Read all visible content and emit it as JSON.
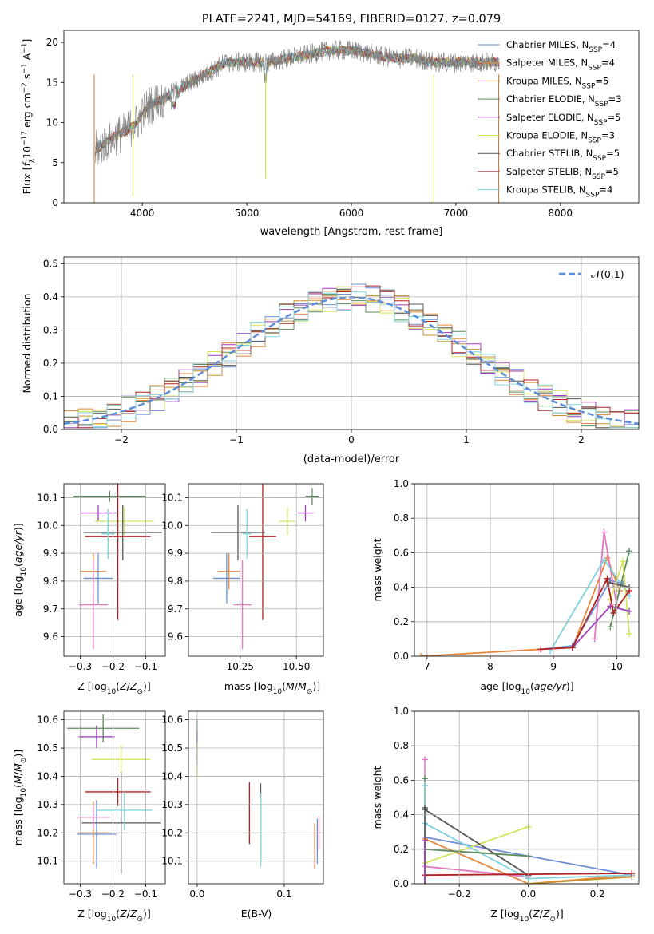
{
  "figure": {
    "title": "PLATE=2241, MJD=54169, FIBERID=0127, z=0.079"
  },
  "chart_data": [
    {
      "id": "spectrum",
      "type": "line",
      "title": "PLATE=2241, MJD=54169, FIBERID=0127, z=0.079",
      "xlabel": "wavelength [Angstrom, rest frame]",
      "ylabel": "Flux [f_λ 10^-17 erg cm^-2 s^-1 A^-1]",
      "xlim": [
        3250,
        8750
      ],
      "ylim": [
        0,
        21.5
      ],
      "xticks": [
        4000,
        5000,
        6000,
        7000,
        8000
      ],
      "yticks": [
        0,
        5,
        10,
        15,
        20
      ],
      "grid": false,
      "legend_placement": "right",
      "legend": [
        {
          "base": "Chabrier MILES, N",
          "sub": "SSP",
          "tail": "=4",
          "color": "#6c8ed6"
        },
        {
          "base": "Salpeter MILES, N",
          "sub": "SSP",
          "tail": "=4",
          "color": "#e9853a"
        },
        {
          "base": "Kroupa MILES, N",
          "sub": "SSP",
          "tail": "=5",
          "color": "#c8902c"
        },
        {
          "base": "Chabrier ELODIE, N",
          "sub": "SSP",
          "tail": "=3",
          "color": "#5b8a5b"
        },
        {
          "base": "Salpeter ELODIE, N",
          "sub": "SSP",
          "tail": "=5",
          "color": "#9b3cb8"
        },
        {
          "base": "Kroupa ELODIE, N",
          "sub": "SSP",
          "tail": "=3",
          "color": "#d4e45a"
        },
        {
          "base": "Chabrier STELIB, N",
          "sub": "SSP",
          "tail": "=5",
          "color": "#555555"
        },
        {
          "base": "Salpeter STELIB, N",
          "sub": "SSP",
          "tail": "=5",
          "color": "#b22222"
        },
        {
          "base": "Kroupa STELIB, N",
          "sub": "SSP",
          "tail": "=4",
          "color": "#7fd3dc"
        }
      ],
      "data_curve": {
        "color": "#808080",
        "x": [
          3550,
          3700,
          3850,
          3950,
          4050,
          4200,
          4400,
          4600,
          4800,
          5000,
          5200,
          5400,
          5600,
          5800,
          6000,
          6200,
          6400,
          6600,
          6800,
          7000,
          7200,
          7400
        ],
        "y": [
          6.5,
          8,
          9,
          10,
          12,
          13,
          14.5,
          16,
          17.5,
          17.5,
          17.5,
          18,
          18.5,
          19,
          19,
          18.5,
          18,
          18,
          17.5,
          17.5,
          17.5,
          17.5
        ]
      }
    },
    {
      "id": "residuals",
      "type": "line",
      "xlabel": "(data-model)/error",
      "ylabel": "Normed distribution",
      "xlim": [
        -2.5,
        2.5
      ],
      "ylim": [
        0,
        0.52
      ],
      "xticks": [
        -2,
        -1,
        0,
        1,
        2
      ],
      "yticks": [
        0.0,
        0.1,
        0.2,
        0.3,
        0.4,
        0.5
      ],
      "grid": true,
      "legend": "𝒩(0,1)",
      "normal_color": "#5b8dd9"
    },
    {
      "id": "age_vs_Z",
      "type": "scatter",
      "xlabel": "Z [log10(Z/Z⊙)]",
      "ylabel": "age [log10(age/yr)]",
      "xlim": [
        -0.35,
        -0.04
      ],
      "ylim": [
        9.53,
        10.15
      ],
      "xticks": [
        -0.3,
        -0.2,
        -0.1
      ],
      "yticks": [
        9.6,
        9.7,
        9.8,
        9.9,
        10.0,
        10.1
      ],
      "points": [
        {
          "color": "#6c8ed6",
          "x": -0.245,
          "xerr": 0.045,
          "y": 9.81,
          "yerr": 0.09
        },
        {
          "color": "#e9853a",
          "x": -0.26,
          "xerr": 0.04,
          "y": 9.835,
          "yerr": 0.065
        },
        {
          "color": "#5b8a5b",
          "x": -0.21,
          "xerr": 0.11,
          "y": 10.105,
          "yerr": 0.02
        },
        {
          "color": "#9b3cb8",
          "x": -0.245,
          "xerr": 0.055,
          "y": 10.045,
          "yerr": 0.03
        },
        {
          "color": "#d4e45a",
          "x": -0.165,
          "xerr": 0.09,
          "y": 10.015,
          "yerr": 0.05
        },
        {
          "color": "#555555",
          "x": -0.17,
          "xerr": 0.12,
          "y": 9.975,
          "yerr": 0.1
        },
        {
          "color": "#b22222",
          "x": -0.185,
          "xerr": 0.1,
          "y": 9.96,
          "yerr": 0.3
        },
        {
          "color": "#7fd3dc",
          "x": -0.215,
          "xerr": 0.02,
          "y": 9.97,
          "yerr": 0.09
        },
        {
          "color": "#e377c2",
          "x": -0.26,
          "xerr": 0.045,
          "y": 9.715,
          "yerr": 0.16
        }
      ]
    },
    {
      "id": "age_vs_mass",
      "type": "scatter",
      "xlabel": "mass [log10(M/M⊙)]",
      "xlim": [
        10.02,
        10.62
      ],
      "ylim": [
        9.53,
        10.15
      ],
      "xticks": [
        10.25,
        10.5
      ],
      "yticks": [
        9.6,
        9.7,
        9.8,
        9.9,
        10.0,
        10.1
      ],
      "points": [
        {
          "color": "#6c8ed6",
          "x": 10.19,
          "xerr": 0.06,
          "y": 9.81,
          "yerr": 0.09
        },
        {
          "color": "#e9853a",
          "x": 10.2,
          "xerr": 0.05,
          "y": 9.835,
          "yerr": 0.065
        },
        {
          "color": "#5b8a5b",
          "x": 10.57,
          "xerr": 0.03,
          "y": 10.105,
          "yerr": 0.03
        },
        {
          "color": "#9b3cb8",
          "x": 10.54,
          "xerr": 0.035,
          "y": 10.045,
          "yerr": 0.03
        },
        {
          "color": "#d4e45a",
          "x": 10.46,
          "xerr": 0.035,
          "y": 10.015,
          "yerr": 0.05
        },
        {
          "color": "#555555",
          "x": 10.24,
          "xerr": 0.12,
          "y": 9.975,
          "yerr": 0.1
        },
        {
          "color": "#b22222",
          "x": 10.35,
          "xerr": 0.06,
          "y": 9.96,
          "yerr": 0.3
        },
        {
          "color": "#7fd3dc",
          "x": 10.28,
          "xerr": 0.02,
          "y": 9.97,
          "yerr": 0.09
        },
        {
          "color": "#e377c2",
          "x": 10.26,
          "xerr": 0.04,
          "y": 9.715,
          "yerr": 0.16
        }
      ]
    },
    {
      "id": "weight_vs_age",
      "type": "line",
      "xlabel": "age [log10(age/yr)]",
      "ylabel": "mass weight",
      "xlim": [
        6.8,
        10.35
      ],
      "ylim": [
        0,
        1.0
      ],
      "xticks": [
        7,
        8,
        9,
        10
      ],
      "yticks": [
        0.0,
        0.2,
        0.4,
        0.6,
        0.8,
        1.0
      ],
      "grid": true,
      "series": [
        {
          "color": "#e9853a",
          "x": [
            6.9,
            8.8,
            9.3,
            9.85,
            10.05
          ],
          "y": [
            0.0,
            0.04,
            0.05,
            0.57,
            0.38
          ]
        },
        {
          "color": "#6c8ed6",
          "x": [
            8.8,
            9.3,
            9.9,
            10.1
          ],
          "y": [
            0.04,
            0.06,
            0.44,
            0.42
          ]
        },
        {
          "color": "#e377c2",
          "x": [
            9.65,
            9.8,
            10.0
          ],
          "y": [
            0.1,
            0.72,
            0.3
          ]
        },
        {
          "color": "#7fd3dc",
          "x": [
            8.95,
            9.8,
            10.2
          ],
          "y": [
            0.03,
            0.56,
            0.35
          ]
        },
        {
          "color": "#5b8a5b",
          "x": [
            9.9,
            10.2
          ],
          "y": [
            0.17,
            0.61
          ]
        },
        {
          "color": "#d4e45a",
          "x": [
            9.9,
            10.1,
            10.2
          ],
          "y": [
            0.33,
            0.55,
            0.13
          ]
        },
        {
          "color": "#9b3cb8",
          "x": [
            9.3,
            9.9,
            10.2
          ],
          "y": [
            0.05,
            0.29,
            0.26
          ]
        },
        {
          "color": "#555555",
          "x": [
            9.85,
            10.2
          ],
          "y": [
            0.43,
            0.4
          ]
        },
        {
          "color": "#b22222",
          "x": [
            8.8,
            9.3,
            9.85,
            9.95,
            10.2
          ],
          "y": [
            0.04,
            0.05,
            0.45,
            0.25,
            0.38
          ]
        }
      ]
    },
    {
      "id": "mass_vs_Z",
      "type": "scatter",
      "xlabel": "Z [log10(Z/Z⊙)]",
      "ylabel": "mass [log10(M/M⊙)]",
      "xlim": [
        -0.35,
        -0.04
      ],
      "ylim": [
        10.02,
        10.63
      ],
      "xticks": [
        -0.3,
        -0.2,
        -0.1
      ],
      "yticks": [
        10.1,
        10.2,
        10.3,
        10.4,
        10.5,
        10.6
      ],
      "points": [
        {
          "color": "#6c8ed6",
          "x": -0.25,
          "xerr": 0.06,
          "y": 10.195,
          "yerr": 0.12
        },
        {
          "color": "#e9853a",
          "x": -0.26,
          "xerr": 0.045,
          "y": 10.2,
          "yerr": 0.11
        },
        {
          "color": "#5b8a5b",
          "x": -0.23,
          "xerr": 0.11,
          "y": 10.57,
          "yerr": 0.05
        },
        {
          "color": "#9b3cb8",
          "x": -0.25,
          "xerr": 0.055,
          "y": 10.54,
          "yerr": 0.04
        },
        {
          "color": "#d4e45a",
          "x": -0.175,
          "xerr": 0.09,
          "y": 10.46,
          "yerr": 0.05
        },
        {
          "color": "#555555",
          "x": -0.175,
          "xerr": 0.12,
          "y": 10.235,
          "yerr": 0.18
        },
        {
          "color": "#b22222",
          "x": -0.185,
          "xerr": 0.1,
          "y": 10.345,
          "yerr": 0.05
        },
        {
          "color": "#7fd3dc",
          "x": -0.165,
          "xerr": 0.085,
          "y": 10.28,
          "yerr": 0.07
        },
        {
          "color": "#e377c2",
          "x": -0.26,
          "xerr": 0.05,
          "y": 10.255,
          "yerr": 0.04
        }
      ]
    },
    {
      "id": "mass_vs_EBV",
      "type": "scatter",
      "xlabel": "E(B-V)",
      "xlim": [
        -0.01,
        0.145
      ],
      "ylim": [
        10.02,
        10.63
      ],
      "xticks": [
        0.0,
        0.1
      ],
      "yticks": [
        10.1,
        10.2,
        10.3,
        10.4,
        10.5,
        10.6
      ],
      "points": [
        {
          "color": "#6c8ed6",
          "x": 0.138,
          "y": 10.17,
          "yerr": 0.08
        },
        {
          "color": "#e9853a",
          "x": 0.135,
          "y": 10.155,
          "yerr": 0.08
        },
        {
          "color": "#5b8a5b",
          "x": 0.0,
          "y": 10.55,
          "yerr": 0.05
        },
        {
          "color": "#9b3cb8",
          "x": 0.0,
          "y": 10.5,
          "yerr": 0.06
        },
        {
          "color": "#d4e45a",
          "x": 0.0,
          "y": 10.46,
          "yerr": 0.06
        },
        {
          "color": "#555555",
          "x": 0.073,
          "y": 10.235,
          "yerr": 0.14
        },
        {
          "color": "#b22222",
          "x": 0.06,
          "y": 10.27,
          "yerr": 0.11
        },
        {
          "color": "#7fd3dc",
          "x": 0.073,
          "y": 10.21,
          "yerr": 0.13
        },
        {
          "color": "#e377c2",
          "x": 0.14,
          "y": 10.2,
          "yerr": 0.06
        }
      ]
    },
    {
      "id": "weight_vs_Z",
      "type": "line",
      "xlabel": "Z [log10(Z/Z⊙)]",
      "ylabel": "mass weight",
      "xlim": [
        -0.33,
        0.32
      ],
      "ylim": [
        0,
        1.0
      ],
      "xticks": [
        -0.2,
        0.0,
        0.2
      ],
      "yticks": [
        0.0,
        0.2,
        0.4,
        0.6,
        0.8,
        1.0
      ],
      "grid": true,
      "series": [
        {
          "color": "#6c8ed6",
          "x": [
            -0.3,
            0.0,
            0.3
          ],
          "y": [
            0.27,
            0.16,
            0.05
          ]
        },
        {
          "color": "#e9853a",
          "x": [
            -0.3,
            0.0,
            0.3
          ],
          "y": [
            0.26,
            0.0,
            0.05
          ]
        },
        {
          "color": "#c8902c",
          "x": [
            0.0,
            0.3
          ],
          "y": [
            0.0,
            0.04
          ]
        },
        {
          "color": "#e377c2",
          "x": [
            -0.3,
            0.0
          ],
          "y": [
            0.1,
            0.04
          ]
        },
        {
          "color": "#d4e45a",
          "x": [
            -0.3,
            0.0
          ],
          "y": [
            0.12,
            0.33
          ]
        },
        {
          "color": "#7fd3dc",
          "x": [
            -0.3,
            0.0,
            0.3
          ],
          "y": [
            0.35,
            0.03,
            0.05
          ]
        },
        {
          "color": "#555555",
          "x": [
            -0.3,
            0.0
          ],
          "y": [
            0.43,
            0.05
          ]
        },
        {
          "color": "#5b8a5b",
          "x": [
            -0.3,
            0.0
          ],
          "y": [
            0.2,
            0.16
          ]
        },
        {
          "color": "#b22222",
          "x": [
            -0.3,
            0.3
          ],
          "y": [
            0.05,
            0.06
          ]
        }
      ],
      "markers": [
        {
          "color": "#e377c2",
          "x": -0.3,
          "y": 0.72
        },
        {
          "color": "#5b8a5b",
          "x": -0.3,
          "y": 0.61
        },
        {
          "color": "#7fd3dc",
          "x": -0.3,
          "y": 0.57
        },
        {
          "color": "#555555",
          "x": -0.3,
          "y": 0.44
        },
        {
          "color": "#9b3cb8",
          "x": -0.3,
          "y": 0.25
        }
      ]
    }
  ]
}
